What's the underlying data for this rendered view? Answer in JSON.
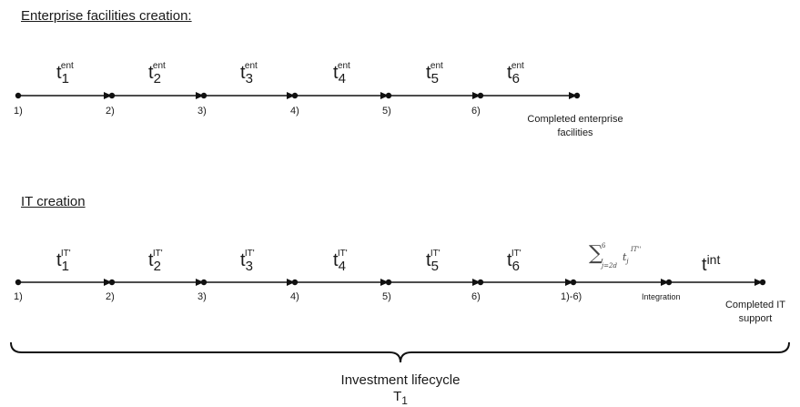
{
  "sections": {
    "enterprise": {
      "heading": "Enterprise facilities creation:",
      "symbols": [
        {
          "base": "t",
          "sub": "1",
          "sup": "ent"
        },
        {
          "base": "t",
          "sub": "2",
          "sup": "ent"
        },
        {
          "base": "t",
          "sub": "3",
          "sup": "ent"
        },
        {
          "base": "t",
          "sub": "4",
          "sup": "ent"
        },
        {
          "base": "t",
          "sub": "5",
          "sup": "ent"
        },
        {
          "base": "t",
          "sub": "6",
          "sup": "ent"
        }
      ],
      "point_labels": [
        "1)",
        "2)",
        "3)",
        "4)",
        "5)",
        "6)"
      ],
      "end_label_line1": "Completed enterprise",
      "end_label_line2": "facilities"
    },
    "it": {
      "heading": "IT creation",
      "symbols": [
        {
          "base": "t",
          "sub": "1",
          "sup": "IT'"
        },
        {
          "base": "t",
          "sub": "2",
          "sup": "IT'"
        },
        {
          "base": "t",
          "sub": "3",
          "sup": "IT'"
        },
        {
          "base": "t",
          "sub": "4",
          "sup": "IT'"
        },
        {
          "base": "t",
          "sub": "5",
          "sup": "IT'"
        },
        {
          "base": "t",
          "sub": "6",
          "sup": "IT'"
        }
      ],
      "point_labels": [
        "1)",
        "2)",
        "3)",
        "4)",
        "5)",
        "6)",
        "1)-6)"
      ],
      "sum_term": {
        "sigma": "∑",
        "upper": "6",
        "lower": "j=2d",
        "term": "t",
        "term_sub": "j",
        "term_sup": "IT''"
      },
      "tint": {
        "base": "t",
        "sup": "int"
      },
      "integration_label": "Integration",
      "end_label_line1": "Completed IT",
      "end_label_line2": "support"
    }
  },
  "lifecycle": {
    "label": "Investment lifecycle",
    "symbol_base": "T",
    "symbol_sub": "1"
  }
}
